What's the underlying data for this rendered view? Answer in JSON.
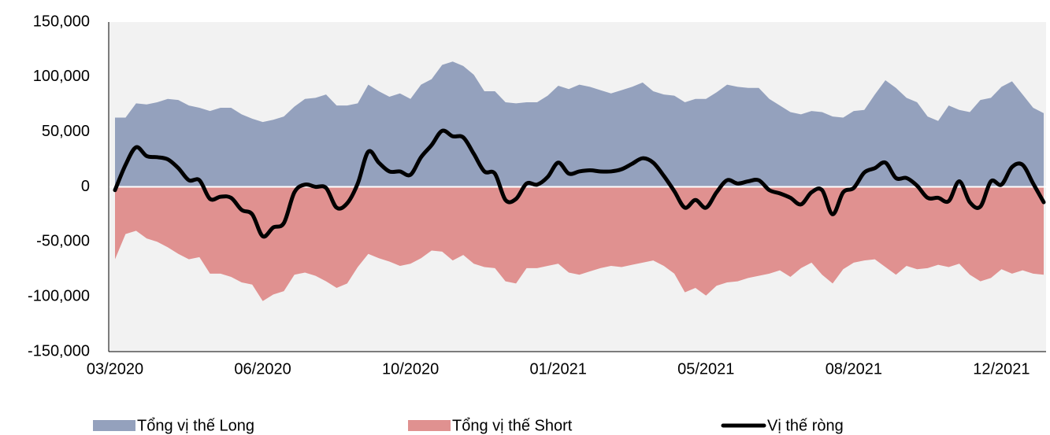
{
  "chart_data": {
    "type": "area",
    "categories": [
      "03/2020",
      null,
      null,
      null,
      null,
      null,
      null,
      null,
      null,
      null,
      null,
      null,
      null,
      null,
      "06/2020",
      null,
      null,
      null,
      null,
      null,
      null,
      null,
      null,
      null,
      null,
      null,
      null,
      null,
      "10/2020",
      null,
      null,
      null,
      null,
      null,
      null,
      null,
      null,
      null,
      null,
      null,
      null,
      null,
      "01/2021",
      null,
      null,
      null,
      null,
      null,
      null,
      null,
      null,
      null,
      null,
      null,
      null,
      null,
      "05/2021",
      null,
      null,
      null,
      null,
      null,
      null,
      null,
      null,
      null,
      null,
      null,
      null,
      null,
      "08/2021",
      null,
      null,
      null,
      null,
      null,
      null,
      null,
      null,
      null,
      null,
      null,
      null,
      null,
      "12/2021",
      null,
      null,
      null,
      null
    ],
    "series": [
      {
        "name": "Tổng vị thế Long",
        "color": "#94a1bd",
        "kind": "area",
        "values": [
          63000,
          63000,
          76000,
          75000,
          77000,
          80000,
          79000,
          74000,
          72000,
          69000,
          72000,
          72000,
          66000,
          62000,
          59000,
          61000,
          64000,
          73000,
          80000,
          81000,
          84000,
          74000,
          74000,
          76000,
          93000,
          87000,
          82000,
          85000,
          80000,
          93000,
          98000,
          111000,
          114000,
          110000,
          102000,
          87000,
          87000,
          77000,
          76000,
          77000,
          77000,
          83000,
          92000,
          89000,
          93000,
          91000,
          88000,
          85000,
          88000,
          91000,
          95000,
          87000,
          84000,
          83000,
          77000,
          80000,
          80000,
          86000,
          93000,
          91000,
          90000,
          90000,
          80000,
          74000,
          68000,
          66000,
          69000,
          68000,
          64000,
          63000,
          69000,
          70000,
          84000,
          97000,
          90000,
          81000,
          77000,
          64000,
          60000,
          74000,
          70000,
          68000,
          79000,
          81000,
          91000,
          96000,
          84000,
          72000,
          67000
        ]
      },
      {
        "name": "Tổng vị thế Short",
        "color": "#e09190",
        "kind": "area",
        "values": [
          -66000,
          -43000,
          -40000,
          -47000,
          -50000,
          -55000,
          -61000,
          -66000,
          -64000,
          -79000,
          -79000,
          -82000,
          -87000,
          -89000,
          -104000,
          -98000,
          -95000,
          -80000,
          -78000,
          -81000,
          -86000,
          -92000,
          -88000,
          -73000,
          -61000,
          -65000,
          -68000,
          -72000,
          -70000,
          -65000,
          -58000,
          -59000,
          -67000,
          -62000,
          -70000,
          -73000,
          -74000,
          -86000,
          -88000,
          -74000,
          -74000,
          -72000,
          -70000,
          -78000,
          -80000,
          -77000,
          -74000,
          -72000,
          -73000,
          -71000,
          -69000,
          -67000,
          -72000,
          -79000,
          -96000,
          -92000,
          -99000,
          -90000,
          -87000,
          -86000,
          -83000,
          -81000,
          -79000,
          -76000,
          -82000,
          -74000,
          -69000,
          -80000,
          -88000,
          -75000,
          -69000,
          -67000,
          -66000,
          -73000,
          -80000,
          -72000,
          -75000,
          -74000,
          -71000,
          -73000,
          -70000,
          -80000,
          -86000,
          -83000,
          -75000,
          -79000,
          -76000,
          -79000,
          -80000
        ]
      },
      {
        "name": "Vị thế ròng",
        "color": "#000000",
        "kind": "line",
        "values": [
          -3000,
          20000,
          36000,
          28000,
          27000,
          25000,
          17000,
          6000,
          6000,
          -11000,
          -9000,
          -10000,
          -21000,
          -25000,
          -45000,
          -37000,
          -33000,
          -5000,
          2000,
          0,
          -1000,
          -19000,
          -15000,
          3000,
          32000,
          22000,
          14000,
          14000,
          11000,
          27000,
          38000,
          51000,
          46000,
          45000,
          30000,
          14000,
          12000,
          -12000,
          -11000,
          3000,
          2000,
          9000,
          22000,
          12000,
          14000,
          15000,
          14000,
          14000,
          16000,
          21000,
          26000,
          22000,
          10000,
          -4000,
          -19000,
          -12000,
          -19000,
          -5000,
          6000,
          3000,
          5000,
          6000,
          -3000,
          -6000,
          -10000,
          -16000,
          -5000,
          -3000,
          -25000,
          -5000,
          -1000,
          13000,
          17000,
          22000,
          8000,
          8000,
          1000,
          -10000,
          -10000,
          -13000,
          5000,
          -14000,
          -18000,
          5000,
          2000,
          18000,
          20000,
          3000,
          -14000
        ]
      }
    ],
    "ylim": [
      -150000,
      150000
    ],
    "yticks": [
      {
        "value": -150000,
        "label": "-150,000"
      },
      {
        "value": -100000,
        "label": "-100,000"
      },
      {
        "value": -50000,
        "label": "-50,000"
      },
      0,
      {
        "value": 50000,
        "label": "50,000"
      },
      {
        "value": 100000,
        "label": "100,000"
      },
      {
        "value": 150000,
        "label": "150,000"
      }
    ]
  }
}
